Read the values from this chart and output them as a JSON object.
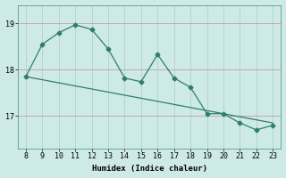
{
  "x": [
    8,
    9,
    10,
    11,
    12,
    13,
    14,
    15,
    16,
    17,
    18,
    19,
    20,
    21,
    22,
    23
  ],
  "y": [
    17.85,
    18.55,
    18.8,
    18.97,
    18.87,
    18.45,
    17.82,
    17.74,
    18.33,
    17.82,
    17.62,
    17.05,
    17.05,
    16.85,
    16.7,
    16.8
  ],
  "trend_x": [
    8,
    23
  ],
  "trend_y": [
    17.85,
    16.85
  ],
  "line_color": "#2e7d6e",
  "bg_color": "#ceeae6",
  "xlabel": "Humidex (Indice chaleur)",
  "yticks": [
    17,
    18,
    19
  ],
  "xticks": [
    8,
    9,
    10,
    11,
    12,
    13,
    14,
    15,
    16,
    17,
    18,
    19,
    20,
    21,
    22,
    23
  ],
  "xlim": [
    7.5,
    23.5
  ],
  "ylim": [
    16.3,
    19.4
  ],
  "hgrid_color": "#c8a8a8",
  "vgrid_color": "#b8d4d0"
}
